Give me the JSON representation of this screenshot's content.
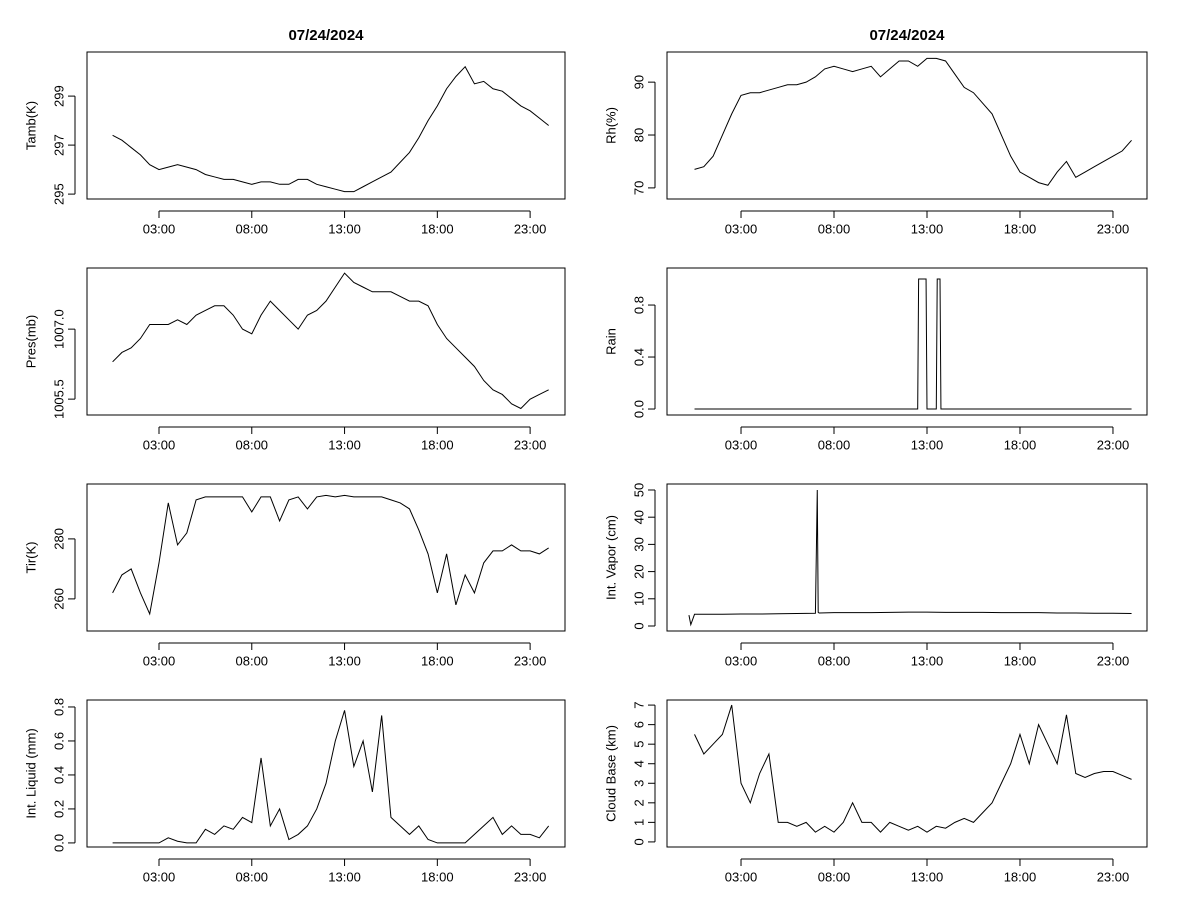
{
  "chart_data": [
    {
      "type": "line",
      "title": "07/24/2024",
      "ylabel": "Tamb(K)",
      "color": "#000000",
      "x": [
        0.5,
        1,
        1.5,
        2,
        2.5,
        3,
        3.5,
        4,
        4.5,
        5,
        5.5,
        6,
        6.5,
        7,
        7.5,
        8,
        8.5,
        9,
        9.5,
        10,
        10.5,
        11,
        11.5,
        12,
        12.5,
        13,
        13.5,
        14,
        14.5,
        15,
        15.5,
        16,
        16.5,
        17,
        17.5,
        18,
        18.5,
        19,
        19.5,
        20,
        20.5,
        21,
        21.5,
        22,
        22.5,
        23,
        23.5,
        24
      ],
      "values": [
        297.4,
        297.2,
        296.9,
        296.6,
        296.2,
        296.0,
        296.1,
        296.2,
        296.1,
        296.0,
        295.8,
        295.7,
        295.6,
        295.6,
        295.5,
        295.4,
        295.5,
        295.5,
        295.4,
        295.4,
        295.6,
        295.6,
        295.4,
        295.3,
        295.2,
        295.1,
        295.1,
        295.3,
        295.5,
        295.7,
        295.9,
        296.3,
        296.7,
        297.3,
        298.0,
        298.6,
        299.3,
        299.8,
        300.2,
        299.5,
        299.6,
        299.3,
        299.2,
        298.9,
        298.6,
        298.4,
        298.1,
        297.8
      ],
      "xlim": [
        -0.88,
        24.88
      ],
      "ylim": [
        294.8,
        300.8
      ],
      "xticks": [
        {
          "value": 3,
          "label": "03:00"
        },
        {
          "value": 8,
          "label": "08:00"
        },
        {
          "value": 13,
          "label": "13:00"
        },
        {
          "value": 18,
          "label": "18:00"
        },
        {
          "value": 23,
          "label": "23:00"
        }
      ],
      "yticks": [
        295,
        297,
        299
      ]
    },
    {
      "type": "line",
      "title": "07/24/2024",
      "ylabel": "Rh(%)",
      "color": "#000000",
      "x": [
        0.5,
        1,
        1.5,
        2,
        2.5,
        3,
        3.5,
        4,
        4.5,
        5,
        5.5,
        6,
        6.5,
        7,
        7.5,
        8,
        8.5,
        9,
        9.5,
        10,
        10.5,
        11,
        11.5,
        12,
        12.5,
        13,
        13.5,
        14,
        14.5,
        15,
        15.5,
        16,
        16.5,
        17,
        17.5,
        18,
        18.5,
        19,
        19.5,
        20,
        20.5,
        21,
        21.5,
        22,
        22.5,
        23,
        23.5,
        24
      ],
      "values": [
        73.5,
        74,
        76,
        80,
        84,
        87.5,
        88,
        88,
        88.5,
        89,
        89.5,
        89.5,
        90,
        91,
        92.5,
        93,
        92.5,
        92,
        92.5,
        93,
        91,
        92.5,
        94,
        94,
        93,
        94.5,
        94.5,
        94,
        91.5,
        89,
        88,
        86,
        84,
        80,
        76,
        73,
        72,
        71,
        70.5,
        73,
        75,
        72,
        73,
        74,
        75,
        76,
        77,
        79
      ],
      "xlim": [
        -0.98,
        24.83
      ],
      "ylim": [
        67.9,
        95.7
      ],
      "xticks": [
        {
          "value": 3,
          "label": "03:00"
        },
        {
          "value": 8,
          "label": "08:00"
        },
        {
          "value": 13,
          "label": "13:00"
        },
        {
          "value": 18,
          "label": "18:00"
        },
        {
          "value": 23,
          "label": "23:00"
        }
      ],
      "yticks": [
        70,
        80,
        90
      ]
    },
    {
      "type": "line",
      "ylabel": "Pres(mb)",
      "color": "#000000",
      "x": [
        0.5,
        1,
        1.5,
        2,
        2.5,
        3,
        3.5,
        4,
        4.5,
        5,
        5.5,
        6,
        6.5,
        7,
        7.5,
        8,
        8.5,
        9,
        9.5,
        10,
        10.5,
        11,
        11.5,
        12,
        12.5,
        13,
        13.5,
        14,
        14.5,
        15,
        15.5,
        16,
        16.5,
        17,
        17.5,
        18,
        18.5,
        19,
        19.5,
        20,
        20.5,
        21,
        21.5,
        22,
        22.5,
        23,
        23.5,
        24
      ],
      "values": [
        1006.3,
        1006.5,
        1006.6,
        1006.8,
        1007.1,
        1007.1,
        1007.1,
        1007.2,
        1007.1,
        1007.3,
        1007.4,
        1007.5,
        1007.5,
        1007.3,
        1007.0,
        1006.9,
        1007.3,
        1007.6,
        1007.4,
        1007.2,
        1007.0,
        1007.3,
        1007.4,
        1007.6,
        1007.9,
        1008.2,
        1008.0,
        1007.9,
        1007.8,
        1007.8,
        1007.8,
        1007.7,
        1007.6,
        1007.6,
        1007.5,
        1007.1,
        1006.8,
        1006.6,
        1006.4,
        1006.2,
        1005.9,
        1005.7,
        1005.6,
        1005.4,
        1005.3,
        1005.5,
        1005.6,
        1005.7
      ],
      "xlim": [
        -0.88,
        24.88
      ],
      "ylim": [
        1005.16,
        1008.31
      ],
      "xticks": [
        {
          "value": 3,
          "label": "03:00"
        },
        {
          "value": 8,
          "label": "08:00"
        },
        {
          "value": 13,
          "label": "13:00"
        },
        {
          "value": 18,
          "label": "18:00"
        },
        {
          "value": 23,
          "label": "23:00"
        }
      ],
      "yticks": [
        1005.5,
        {
          "value": 1007,
          "label": "1007.0"
        }
      ]
    },
    {
      "type": "line",
      "ylabel": "Rain",
      "color": "#000000",
      "x": [
        0.5,
        12.5,
        12.55,
        12.95,
        13.0,
        13.5,
        13.55,
        13.7,
        13.75,
        24
      ],
      "values": [
        0,
        0,
        1,
        1,
        0,
        0,
        1,
        1,
        0,
        0
      ],
      "xlim": [
        -0.98,
        24.83
      ],
      "ylim": [
        -0.046,
        1.085
      ],
      "xticks": [
        {
          "value": 3,
          "label": "03:00"
        },
        {
          "value": 8,
          "label": "08:00"
        },
        {
          "value": 13,
          "label": "13:00"
        },
        {
          "value": 18,
          "label": "18:00"
        },
        {
          "value": 23,
          "label": "23:00"
        }
      ],
      "yticks": [
        {
          "value": 0,
          "label": "0.0"
        },
        0.4,
        0.8
      ]
    },
    {
      "type": "line",
      "ylabel": "Tir(K)",
      "color": "#000000",
      "x": [
        0.5,
        1,
        1.5,
        2,
        2.5,
        3,
        3.5,
        4,
        4.5,
        5,
        5.5,
        6,
        6.5,
        7,
        7.5,
        8,
        8.5,
        9,
        9.5,
        10,
        10.5,
        11,
        11.5,
        12,
        12.5,
        13,
        13.5,
        14,
        14.5,
        15,
        15.5,
        16,
        16.5,
        17,
        17.5,
        18,
        18.5,
        19,
        19.5,
        20,
        20.5,
        21,
        21.5,
        22,
        22.5,
        23,
        23.5,
        24
      ],
      "values": [
        262,
        268,
        270,
        262,
        255,
        272,
        292,
        278,
        282,
        293,
        294,
        294,
        294,
        294,
        294,
        289,
        294,
        294,
        286,
        293,
        294,
        290,
        294,
        294.5,
        294,
        294.5,
        294,
        294,
        294,
        294,
        293,
        292,
        290,
        283,
        275,
        262,
        275,
        258,
        268,
        262,
        272,
        276,
        276,
        278,
        276,
        276,
        275,
        277
      ],
      "xlim": [
        -0.88,
        24.88
      ],
      "ylim": [
        249.3,
        298.3
      ],
      "xticks": [
        {
          "value": 3,
          "label": "03:00"
        },
        {
          "value": 8,
          "label": "08:00"
        },
        {
          "value": 13,
          "label": "13:00"
        },
        {
          "value": 18,
          "label": "18:00"
        },
        {
          "value": 23,
          "label": "23:00"
        }
      ],
      "yticks": [
        260,
        280
      ]
    },
    {
      "type": "line",
      "ylabel": "Int. Vapor (cm)",
      "color": "#000000",
      "x": [
        0.2,
        0.3,
        0.5,
        1,
        2,
        3,
        4,
        5,
        6,
        7,
        7.05,
        7.1,
        7.15,
        7.2,
        8,
        9,
        10,
        11,
        12,
        13,
        14,
        15,
        16,
        17,
        18,
        19,
        20,
        21,
        22,
        23,
        24
      ],
      "values": [
        4,
        0.5,
        4.3,
        4.3,
        4.3,
        4.4,
        4.4,
        4.5,
        4.6,
        4.7,
        27,
        50,
        5,
        4.8,
        4.9,
        4.9,
        4.9,
        5,
        5.1,
        5.1,
        5,
        5,
        5,
        4.9,
        4.9,
        4.9,
        4.8,
        4.8,
        4.7,
        4.7,
        4.6
      ],
      "xlim": [
        -0.98,
        24.83
      ],
      "ylim": [
        -1.84,
        52.2
      ],
      "xticks": [
        {
          "value": 3,
          "label": "03:00"
        },
        {
          "value": 8,
          "label": "08:00"
        },
        {
          "value": 13,
          "label": "13:00"
        },
        {
          "value": 18,
          "label": "18:00"
        },
        {
          "value": 23,
          "label": "23:00"
        }
      ],
      "yticks": [
        0,
        10,
        20,
        30,
        40,
        50
      ]
    },
    {
      "type": "line",
      "ylabel": "Int. Liquid (mm)",
      "color": "#000000",
      "x": [
        0.5,
        1,
        1.5,
        2,
        2.5,
        3,
        3.5,
        4,
        4.5,
        5,
        5.5,
        6,
        6.5,
        7,
        7.5,
        8,
        8.5,
        9,
        9.5,
        10,
        10.5,
        11,
        11.5,
        12,
        12.5,
        13,
        13.5,
        14,
        14.5,
        15,
        15.5,
        16,
        16.5,
        17,
        17.5,
        18,
        18.5,
        19,
        19.5,
        20,
        20.5,
        21,
        21.5,
        22,
        22.5,
        23,
        23.5,
        24
      ],
      "values": [
        0,
        0,
        0,
        0,
        0,
        0,
        0.03,
        0.01,
        0,
        0,
        0.08,
        0.05,
        0.1,
        0.08,
        0.15,
        0.12,
        0.5,
        0.1,
        0.2,
        0.02,
        0.05,
        0.1,
        0.2,
        0.35,
        0.6,
        0.78,
        0.45,
        0.6,
        0.3,
        0.75,
        0.15,
        0.1,
        0.05,
        0.1,
        0.02,
        0,
        0,
        0,
        0,
        0.05,
        0.1,
        0.15,
        0.05,
        0.1,
        0.05,
        0.05,
        0.03,
        0.1
      ],
      "xlim": [
        -0.88,
        24.88
      ],
      "ylim": [
        -0.024,
        0.841
      ],
      "xticks": [
        {
          "value": 3,
          "label": "03:00"
        },
        {
          "value": 8,
          "label": "08:00"
        },
        {
          "value": 13,
          "label": "13:00"
        },
        {
          "value": 18,
          "label": "18:00"
        },
        {
          "value": 23,
          "label": "23:00"
        }
      ],
      "yticks": [
        {
          "value": 0,
          "label": "0.0"
        },
        0.2,
        0.4,
        0.6,
        0.8
      ]
    },
    {
      "type": "line",
      "ylabel": "Cloud Base (km)",
      "color": "#000000",
      "x": [
        0.5,
        1,
        1.5,
        2,
        2.5,
        3,
        3.5,
        4,
        4.5,
        5,
        5.5,
        6,
        6.5,
        7,
        7.5,
        8,
        8.5,
        9,
        9.5,
        10,
        10.5,
        11,
        11.5,
        12,
        12.5,
        13,
        13.5,
        14,
        14.5,
        15,
        15.5,
        16,
        16.5,
        17,
        17.5,
        18,
        18.5,
        19,
        19.5,
        20,
        20.5,
        21,
        21.5,
        22,
        22.5,
        23,
        23.5,
        24
      ],
      "values": [
        5.5,
        4.5,
        5,
        5.5,
        7,
        3,
        2,
        3.5,
        4.5,
        1,
        1,
        0.8,
        1,
        0.5,
        0.8,
        0.5,
        1,
        2,
        1,
        1,
        0.5,
        1,
        0.8,
        0.6,
        0.8,
        0.5,
        0.8,
        0.7,
        1,
        1.2,
        1,
        1.5,
        2,
        3,
        4,
        5.5,
        4,
        6,
        5,
        4,
        6.5,
        3.5,
        3.3,
        3.5,
        3.6,
        3.6,
        3.4,
        3.2
      ],
      "xlim": [
        -0.98,
        24.83
      ],
      "ylim": [
        -0.26,
        7.26
      ],
      "xticks": [
        {
          "value": 3,
          "label": "03:00"
        },
        {
          "value": 8,
          "label": "08:00"
        },
        {
          "value": 13,
          "label": "13:00"
        },
        {
          "value": 18,
          "label": "18:00"
        },
        {
          "value": 23,
          "label": "23:00"
        }
      ],
      "yticks": [
        0,
        1,
        2,
        3,
        4,
        5,
        6,
        7
      ]
    }
  ]
}
